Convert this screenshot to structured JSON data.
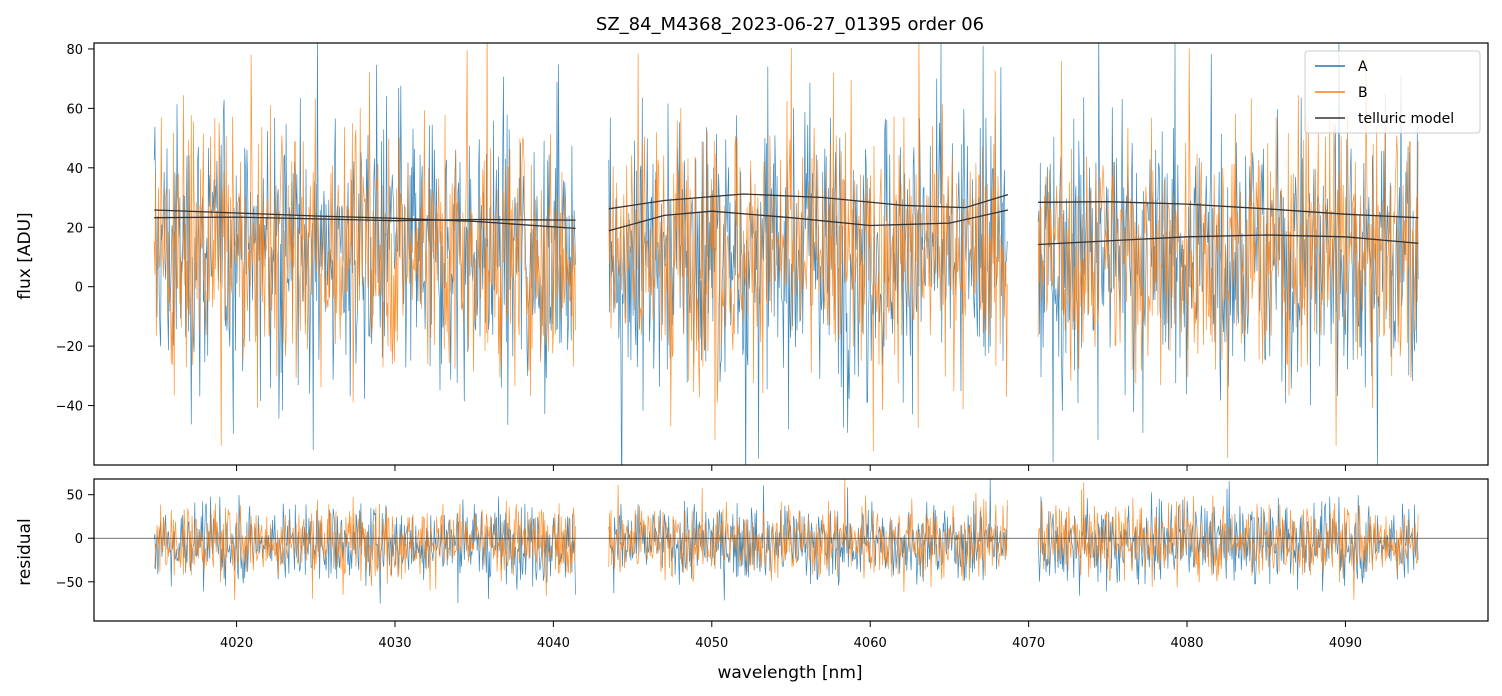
{
  "title": "SZ_84_M4368_2023-06-27_01395  order 06",
  "chart_data": [
    {
      "type": "line",
      "panel": "flux",
      "xlabel": "",
      "ylabel": "flux [ADU]",
      "xlim": [
        4011,
        4099
      ],
      "ylim": [
        -60,
        82
      ],
      "yticks": [
        -40,
        -20,
        0,
        20,
        40,
        60,
        80
      ],
      "xticks": [
        4020,
        4030,
        4040,
        4050,
        4060,
        4070,
        4080,
        4090
      ],
      "grid": false,
      "legend_position": "top-right",
      "segments": [
        {
          "x_start": 4014.8,
          "x_end": 4041.4
        },
        {
          "x_start": 4043.5,
          "x_end": 4068.7
        },
        {
          "x_start": 4070.6,
          "x_end": 4094.6
        }
      ],
      "series": [
        {
          "name": "A",
          "color": "#1f77b4",
          "description_values": {
            "center": 12,
            "noise_sigma": 23
          }
        },
        {
          "name": "B",
          "color": "#ff7f0e",
          "description_values": {
            "center": 12,
            "noise_sigma": 20
          }
        },
        {
          "name": "telluric model",
          "color": "#333333",
          "curves": [
            {
              "x": [
                4014.8,
                4020,
                4025,
                4030,
                4035,
                4041.4
              ],
              "y": [
                25.8,
                24.8,
                23.8,
                23.0,
                22.0,
                19.6
              ]
            },
            {
              "x": [
                4014.8,
                4020,
                4025,
                4030,
                4035,
                4041.4
              ],
              "y": [
                23.2,
                23.4,
                22.8,
                22.2,
                22.6,
                22.4
              ]
            },
            {
              "x": [
                4043.5,
                4047,
                4052,
                4057,
                4062,
                4066,
                4068.7
              ],
              "y": [
                26.2,
                29.0,
                31.2,
                30.0,
                27.4,
                26.6,
                31.0
              ]
            },
            {
              "x": [
                4043.5,
                4047,
                4050,
                4055,
                4060,
                4065,
                4068.7
              ],
              "y": [
                18.8,
                24.0,
                25.4,
                23.2,
                20.6,
                21.4,
                25.8
              ]
            },
            {
              "x": [
                4070.6,
                4075,
                4080,
                4085,
                4090,
                4094.6
              ],
              "y": [
                28.4,
                28.6,
                27.8,
                26.2,
                24.4,
                23.2
              ]
            },
            {
              "x": [
                4070.6,
                4075,
                4080,
                4085,
                4090,
                4094.6
              ],
              "y": [
                14.2,
                15.4,
                16.8,
                17.4,
                16.8,
                14.6
              ]
            }
          ]
        }
      ]
    },
    {
      "type": "line",
      "panel": "residual",
      "xlabel": "wavelength [nm]",
      "ylabel": "residual",
      "xlim": [
        4011,
        4099
      ],
      "ylim": [
        -95,
        68
      ],
      "yticks": [
        -50,
        0,
        50
      ],
      "xticks": [
        4020,
        4030,
        4040,
        4050,
        4060,
        4070,
        4080,
        4090
      ],
      "reference_line_y": 0,
      "series": [
        {
          "name": "A",
          "color": "#1f77b4",
          "description_values": {
            "center": -5,
            "noise_sigma": 22
          }
        },
        {
          "name": "B",
          "color": "#ff7f0e",
          "description_values": {
            "center": -3,
            "noise_sigma": 21
          }
        }
      ]
    }
  ],
  "legend": {
    "items": [
      {
        "label": "A",
        "color": "#1f77b4"
      },
      {
        "label": "B",
        "color": "#ff7f0e"
      },
      {
        "label": "telluric model",
        "color": "#333333"
      }
    ]
  }
}
